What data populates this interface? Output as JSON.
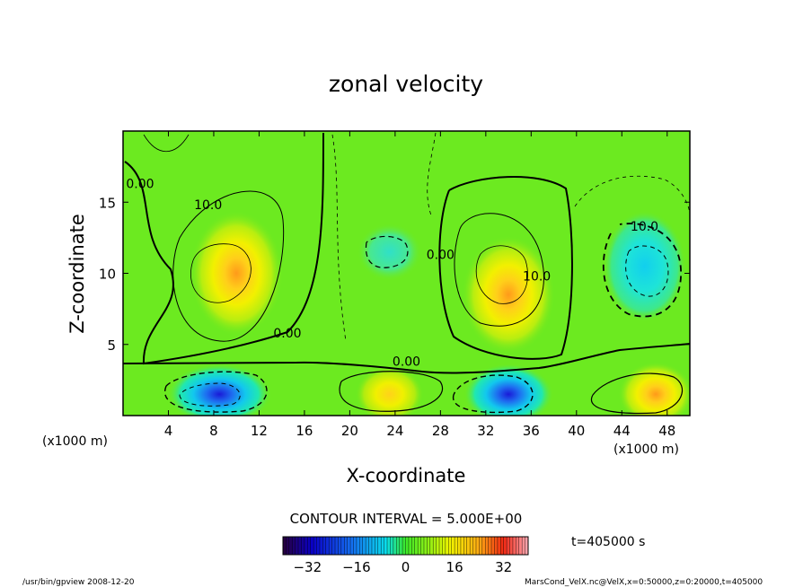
{
  "chart_data": {
    "type": "heatmap",
    "title": "zonal velocity",
    "xlabel": "X-coordinate",
    "ylabel": "Z-coordinate",
    "x_unit_left": "(x1000 m)",
    "x_unit_right": "(x1000 m)",
    "xlim": [
      0,
      50
    ],
    "ylim": [
      0,
      20
    ],
    "x_ticks": [
      "4",
      "8",
      "12",
      "16",
      "20",
      "24",
      "28",
      "32",
      "36",
      "40",
      "44",
      "48"
    ],
    "y_ticks": [
      "5",
      "10",
      "15"
    ],
    "x_tick_values": [
      4,
      8,
      12,
      16,
      20,
      24,
      28,
      32,
      36,
      40,
      44,
      48
    ],
    "y_tick_values": [
      5,
      10,
      15
    ],
    "contour_interval_text": "CONTOUR INTERVAL = 5.000E+00",
    "contour_labels": [
      {
        "text": "0.00",
        "x": 1.5,
        "y": 16.0
      },
      {
        "text": "10.0",
        "x": 7.5,
        "y": 14.5
      },
      {
        "text": "0.00",
        "x": 14.5,
        "y": 5.5
      },
      {
        "text": "0.00",
        "x": 25.0,
        "y": 3.5
      },
      {
        "text": "0.00",
        "x": 28.0,
        "y": 11.0
      },
      {
        "text": "10.0",
        "x": 36.5,
        "y": 9.5
      },
      {
        "text": "10.0",
        "x": 46.0,
        "y": 13.0
      }
    ],
    "extrema": [
      {
        "x": 10,
        "y": 10,
        "value": 20
      },
      {
        "x": 34,
        "y": 8.5,
        "value": 22
      },
      {
        "x": 46,
        "y": 10.5,
        "value": -15
      },
      {
        "x": 23.5,
        "y": 11.5,
        "value": -8
      },
      {
        "x": 8.5,
        "y": 1.5,
        "value": -32
      },
      {
        "x": 34,
        "y": 1.5,
        "value": -28
      },
      {
        "x": 23.5,
        "y": 1.5,
        "value": 18
      },
      {
        "x": 47,
        "y": 1.5,
        "value": 25
      }
    ],
    "colorbar": {
      "min": -40,
      "max": 40,
      "tick_labels": [
        "-32",
        "-16",
        "0",
        "16",
        "32"
      ],
      "tick_values": [
        -32,
        -16,
        0,
        16,
        32
      ]
    },
    "time_label": "t=405000 s",
    "footer_left": "/usr/bin/gpview   2008-12-20",
    "footer_right": "MarsCond_VelX.nc@VelX,x=0:50000,z=0:20000,t=405000"
  }
}
